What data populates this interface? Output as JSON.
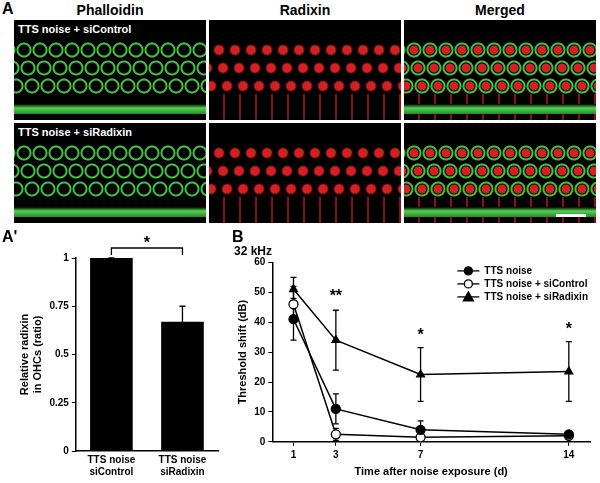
{
  "image_panel": {
    "panel_label": "A",
    "column_titles": [
      "Phalloidin",
      "Radixin",
      "Merged"
    ],
    "row_labels": [
      "TTS noise + siControl",
      "TTS noise + siRadixin"
    ]
  },
  "chart_data": [
    {
      "panel_label": "A'",
      "type": "bar",
      "categories": [
        "TTS noise\nsiControl",
        "TTS noise\nsiRadixin"
      ],
      "values": [
        1,
        0.67
      ],
      "errors": [
        0,
        0.08
      ],
      "color": "#000000",
      "y_label": "Relative radixin\nin OHCs (ratio)",
      "ylim": [
        0,
        1
      ],
      "yticks": [
        0,
        0.25,
        0.5,
        0.75,
        1
      ],
      "grid": false,
      "annotations": [
        {
          "text": "*"
        }
      ]
    },
    {
      "panel_label": "B",
      "type": "line",
      "title": "32 kHz",
      "x": [
        1,
        3,
        7,
        14
      ],
      "xlim": [
        0,
        15
      ],
      "xticks": [
        1,
        3,
        7,
        14
      ],
      "ylim": [
        0,
        60
      ],
      "yticks": [
        0,
        10,
        20,
        30,
        40,
        50,
        60
      ],
      "x_label": "Time after noise exposure (d)",
      "y_label": "Threshold shift (dB)",
      "grid": false,
      "legend": "top right",
      "series": [
        {
          "name": "TTS noise",
          "color": "#000000",
          "marker": "circle",
          "values": [
            41,
            11,
            4,
            2.5
          ],
          "errors": [
            7,
            5,
            3,
            1
          ]
        },
        {
          "name": "TTS noise + siControl",
          "color": "#000000",
          "marker": "open_circle",
          "values": [
            46,
            2.5,
            1.5,
            2
          ],
          "errors": [
            6,
            2,
            1,
            1
          ]
        },
        {
          "name": "TTS noise + siRadixin",
          "color": "#000000",
          "marker": "triangle",
          "values": [
            51,
            34,
            22.5,
            23.5
          ],
          "errors": [
            4,
            10,
            9,
            10
          ]
        }
      ],
      "annotations": [
        {
          "text": "**",
          "x": 3,
          "y": 46
        },
        {
          "text": "*",
          "x": 7,
          "y": 33
        },
        {
          "text": "*",
          "x": 14,
          "y": 35
        }
      ]
    }
  ]
}
